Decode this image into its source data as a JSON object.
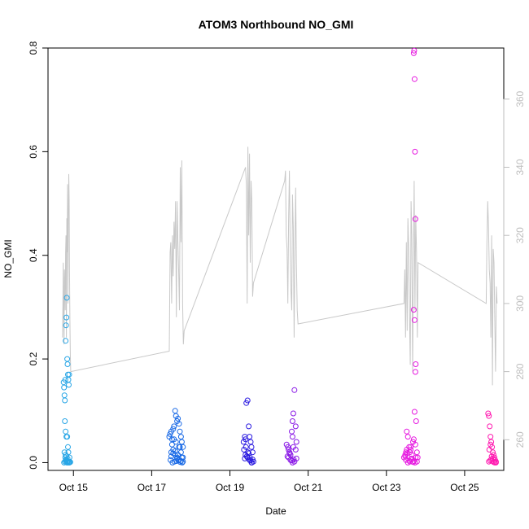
{
  "chart_data": {
    "type": "scatter",
    "title": "ATOM3 Northbound NO_GMI",
    "xlabel": "Date",
    "ylabel": "NO_GMI",
    "x_ticks": [
      "Oct 15",
      "Oct 17",
      "Oct 19",
      "Oct 21",
      "Oct 23",
      "Oct 25"
    ],
    "x_tick_days": [
      15,
      17,
      19,
      21,
      23,
      25
    ],
    "xlim_days": [
      14.35,
      26.0
    ],
    "ylim": [
      -0.015,
      0.8
    ],
    "y_ticks": [
      0.0,
      0.2,
      0.4,
      0.6,
      0.8
    ],
    "y_tick_labels": [
      "0.0",
      "0.2",
      "0.4",
      "0.6",
      "0.8"
    ],
    "y2_ticks": [
      260,
      280,
      300,
      320,
      340,
      360
    ],
    "y2lim": [
      251,
      375
    ],
    "grid": false,
    "legend": "none",
    "colors": {
      "secondary_line": "#c8c8c8",
      "secondary_axis": "#bebebe",
      "gradient": [
        "#2ea8e8",
        "#1a6ae8",
        "#2a1ae0",
        "#8a1ae8",
        "#e81ae0",
        "#ff1ab0"
      ]
    },
    "scatter_series": [
      {
        "color": "#29a6e6",
        "x": [
          14.75,
          14.76,
          14.77,
          14.78,
          14.79,
          14.8,
          14.81,
          14.82,
          14.83,
          14.84,
          14.85,
          14.86,
          14.87,
          14.88,
          14.89,
          14.78,
          14.8,
          14.82,
          14.84,
          14.86,
          14.77,
          14.79,
          14.81,
          14.83,
          14.85,
          14.9,
          14.76,
          14.78,
          14.8,
          14.82,
          14.84,
          14.86,
          14.88,
          14.9,
          14.92,
          14.8,
          14.82,
          14.85,
          14.87,
          14.9
        ],
        "y": [
          0.155,
          0.145,
          0.13,
          0.12,
          0.16,
          0.235,
          0.265,
          0.28,
          0.318,
          0.2,
          0.19,
          0.17,
          0.16,
          0.15,
          0.17,
          0.08,
          0.06,
          0.05,
          0.05,
          0.03,
          0.02,
          0.01,
          0.005,
          0.0,
          0.0,
          0.0,
          0.0,
          0.002,
          0.004,
          0.006,
          0.003,
          0.001,
          0.0,
          0.002,
          0.001,
          0.015,
          0.012,
          0.008,
          0.02,
          0.01
        ]
      },
      {
        "color": "#1a6ae6",
        "x": [
          17.45,
          17.47,
          17.5,
          17.52,
          17.55,
          17.57,
          17.6,
          17.62,
          17.65,
          17.67,
          17.7,
          17.72,
          17.75,
          17.77,
          17.8,
          17.5,
          17.55,
          17.6,
          17.65,
          17.7,
          17.75,
          17.8,
          17.48,
          17.53,
          17.58,
          17.63,
          17.68,
          17.73,
          17.78,
          17.5,
          17.55,
          17.6,
          17.65,
          17.7,
          17.75,
          17.8,
          17.52,
          17.62,
          17.72,
          17.57,
          17.67,
          17.77
        ],
        "y": [
          0.05,
          0.055,
          0.06,
          0.045,
          0.065,
          0.07,
          0.1,
          0.09,
          0.08,
          0.085,
          0.075,
          0.06,
          0.05,
          0.04,
          0.03,
          0.02,
          0.025,
          0.015,
          0.01,
          0.03,
          0.02,
          0.01,
          0.005,
          0.0,
          0.002,
          0.003,
          0.004,
          0.001,
          0.0,
          0.012,
          0.018,
          0.022,
          0.008,
          0.006,
          0.003,
          0.002,
          0.035,
          0.04,
          0.03,
          0.045,
          0.015,
          0.01
        ]
      },
      {
        "color": "#2a1ae0",
        "x": [
          19.35,
          19.38,
          19.4,
          19.42,
          19.45,
          19.48,
          19.5,
          19.53,
          19.55,
          19.58,
          19.4,
          19.45,
          19.5,
          19.55,
          19.6,
          19.38,
          19.43,
          19.48,
          19.53,
          19.58,
          19.36,
          19.41,
          19.46,
          19.51,
          19.56
        ],
        "y": [
          0.04,
          0.05,
          0.045,
          0.115,
          0.12,
          0.07,
          0.05,
          0.04,
          0.03,
          0.02,
          0.015,
          0.01,
          0.005,
          0.0,
          0.002,
          0.008,
          0.012,
          0.018,
          0.004,
          0.006,
          0.025,
          0.03,
          0.02,
          0.01,
          0.0
        ]
      },
      {
        "color": "#8a1ae6",
        "x": [
          20.45,
          20.48,
          20.5,
          20.52,
          20.55,
          20.58,
          20.6,
          20.62,
          20.65,
          20.68,
          20.7,
          20.5,
          20.55,
          20.6,
          20.65,
          20.7,
          20.47,
          20.53,
          20.58,
          20.63,
          20.68,
          20.6,
          20.62
        ],
        "y": [
          0.035,
          0.03,
          0.025,
          0.02,
          0.015,
          0.06,
          0.08,
          0.095,
          0.14,
          0.07,
          0.04,
          0.01,
          0.005,
          0.0,
          0.002,
          0.008,
          0.012,
          0.018,
          0.004,
          0.006,
          0.025,
          0.05,
          0.03
        ]
      },
      {
        "color": "#e61ae0",
        "x": [
          23.45,
          23.48,
          23.5,
          23.52,
          23.55,
          23.58,
          23.6,
          23.62,
          23.65,
          23.68,
          23.7,
          23.72,
          23.75,
          23.78,
          23.8,
          23.7,
          23.71,
          23.72,
          23.73,
          23.74,
          23.7,
          23.72,
          23.74,
          23.76,
          23.5,
          23.55,
          23.6,
          23.65,
          23.7,
          23.75,
          23.48,
          23.53,
          23.58,
          23.63,
          23.68,
          23.73,
          23.78,
          23.52,
          23.62,
          23.74
        ],
        "y": [
          0.01,
          0.015,
          0.02,
          0.06,
          0.05,
          0.03,
          0.02,
          0.025,
          0.015,
          0.04,
          0.045,
          0.098,
          0.19,
          0.02,
          0.01,
          0.79,
          0.795,
          0.74,
          0.6,
          0.47,
          0.295,
          0.275,
          0.175,
          0.08,
          0.005,
          0.0,
          0.002,
          0.008,
          0.003,
          0.01,
          0.012,
          0.018,
          0.004,
          0.006,
          0.001,
          0.0,
          0.002,
          0.025,
          0.03,
          0.035
        ]
      },
      {
        "color": "#ff1ab0",
        "x": [
          25.6,
          25.62,
          25.64,
          25.66,
          25.68,
          25.7,
          25.72,
          25.74,
          25.76,
          25.78,
          25.8,
          25.62,
          25.65,
          25.68,
          25.71,
          25.74,
          25.77,
          25.8,
          25.63,
          25.66,
          25.69,
          25.72
        ],
        "y": [
          0.095,
          0.09,
          0.07,
          0.05,
          0.04,
          0.03,
          0.02,
          0.015,
          0.01,
          0.005,
          0.0,
          0.002,
          0.004,
          0.006,
          0.003,
          0.001,
          0.0,
          0.002,
          0.025,
          0.035,
          0.012,
          0.008
        ]
      }
    ],
    "secondary_line": {
      "axis": "right",
      "x": [
        14.72,
        14.73,
        14.74,
        14.75,
        14.76,
        14.77,
        14.78,
        14.79,
        14.8,
        14.81,
        14.82,
        14.83,
        14.84,
        14.85,
        14.86,
        14.87,
        14.88,
        14.89,
        14.9,
        14.91,
        14.92,
        14.93,
        17.45,
        17.47,
        17.49,
        17.51,
        17.53,
        17.55,
        17.57,
        17.59,
        17.61,
        17.63,
        17.65,
        17.67,
        17.69,
        17.71,
        17.73,
        17.75,
        17.77,
        17.79,
        17.81,
        17.83,
        19.4,
        19.42,
        19.44,
        19.46,
        19.48,
        19.5,
        19.52,
        19.54,
        19.56,
        19.58,
        19.6,
        20.4,
        20.42,
        20.44,
        20.46,
        20.48,
        20.5,
        20.52,
        20.54,
        20.56,
        20.58,
        20.6,
        20.62,
        20.64,
        20.66,
        20.68,
        20.7,
        20.72,
        20.74,
        23.45,
        23.47,
        23.49,
        23.51,
        23.53,
        23.55,
        23.57,
        23.59,
        23.61,
        23.63,
        23.65,
        23.67,
        23.69,
        23.71,
        23.73,
        23.75,
        23.77,
        23.79,
        23.81,
        25.55,
        25.57,
        25.59,
        25.61,
        25.63,
        25.65,
        25.67,
        25.69,
        25.71,
        25.73,
        25.75,
        25.77,
        25.79,
        25.81,
        25.83
      ],
      "y": [
        290,
        300,
        312,
        296,
        288,
        310,
        305,
        298,
        315,
        320,
        290,
        325,
        315,
        335,
        300,
        325,
        338,
        330,
        310,
        295,
        285,
        280,
        286,
        315,
        318,
        300,
        320,
        308,
        324,
        316,
        330,
        296,
        330,
        318,
        310,
        298,
        340,
        318,
        342,
        300,
        288,
        292,
        340,
        335,
        300,
        346,
        320,
        344,
        312,
        336,
        330,
        302,
        306,
        336,
        339,
        320,
        316,
        300,
        324,
        339,
        318,
        304,
        298,
        332,
        322,
        290,
        315,
        334,
        312,
        298,
        294,
        300,
        310,
        290,
        318,
        292,
        325,
        316,
        296,
        282,
        330,
        320,
        280,
        312,
        336,
        298,
        326,
        315,
        290,
        312,
        300,
        318,
        330,
        322,
        310,
        306,
        290,
        320,
        276,
        316,
        312,
        296,
        280,
        305,
        300
      ]
    }
  }
}
